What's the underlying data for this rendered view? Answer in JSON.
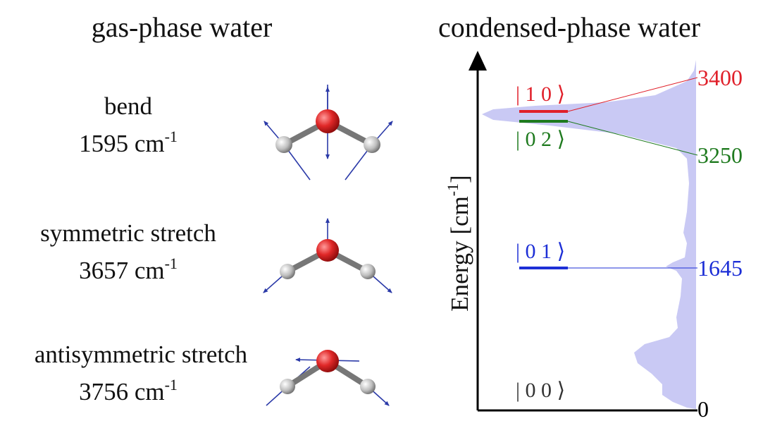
{
  "left": {
    "title": "gas-phase water",
    "modes": [
      {
        "name": "bend",
        "frequency": "1595 cm",
        "exponent": "-1"
      },
      {
        "name": "symmetric stretch",
        "frequency": "3657 cm",
        "exponent": "-1"
      },
      {
        "name": "antisymmetric stretch",
        "frequency": "3756 cm",
        "exponent": "-1"
      }
    ]
  },
  "right": {
    "title": "condensed-phase water",
    "axis_label": "Energy [cm",
    "axis_label_exponent": "-1",
    "axis_label_end": "]",
    "levels": [
      {
        "ket": "| 1 0 ⟩",
        "energy": 3400
      },
      {
        "ket": "| 0 2 ⟩",
        "energy": 3250
      },
      {
        "ket": "| 0 1 ⟩",
        "energy": 1645
      },
      {
        "ket": "| 0 0 ⟩",
        "energy": 0
      }
    ]
  }
}
